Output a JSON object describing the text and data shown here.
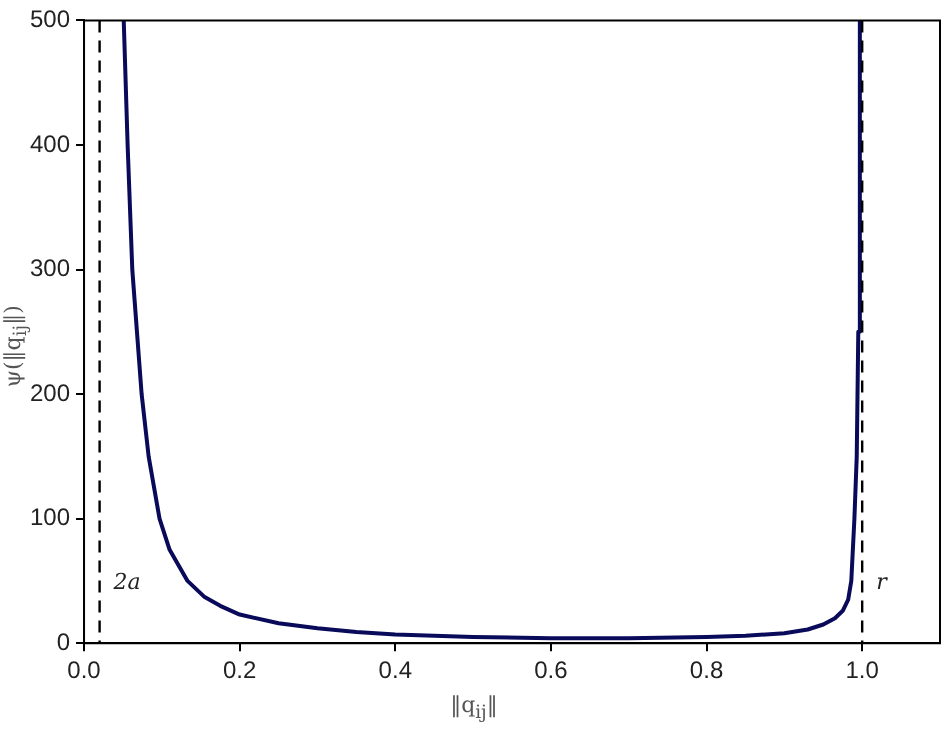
{
  "chart_data": {
    "type": "line",
    "xlabel": "‖q$_{ij}$‖",
    "ylabel": "ψ(‖q$_{ij}$‖)",
    "xlim": [
      0,
      1.1
    ],
    "ylim": [
      0,
      500
    ],
    "xticks": [
      {
        "value": 0,
        "label": "0.0"
      },
      0.2,
      0.4,
      0.6,
      0.8,
      {
        "value": 1,
        "label": "1.0"
      }
    ],
    "yticks": [
      0,
      100,
      200,
      300,
      400,
      500
    ],
    "grid": false,
    "legend": false,
    "marker": "none",
    "line_style": "solid",
    "series": [
      {
        "color": "#0a0a5a",
        "x": [
          0.051,
          0.056,
          0.062,
          0.074,
          0.083,
          0.097,
          0.11,
          0.133,
          0.155,
          0.175,
          0.2,
          0.25,
          0.3,
          0.35,
          0.4,
          0.5,
          0.6,
          0.7,
          0.8,
          0.85,
          0.9,
          0.93,
          0.95,
          0.965,
          0.975,
          0.982,
          0.986,
          0.99,
          0.993,
          0.995,
          0.997
        ],
        "values": [
          500,
          400,
          300,
          200,
          150,
          100,
          75,
          50,
          37,
          30,
          23,
          16,
          12,
          9,
          7,
          5,
          4,
          4,
          5,
          6,
          8,
          11,
          15,
          20,
          26,
          35,
          50,
          100,
          150,
          250,
          500
        ]
      }
    ],
    "ref_lines": [
      {
        "axis": "x",
        "value": 0.02,
        "label": "2a",
        "color": "#000000",
        "line_style": "dashed"
      },
      {
        "axis": "x",
        "value": 1,
        "label": "r",
        "color": "#000000",
        "line_style": "dashed"
      }
    ]
  }
}
